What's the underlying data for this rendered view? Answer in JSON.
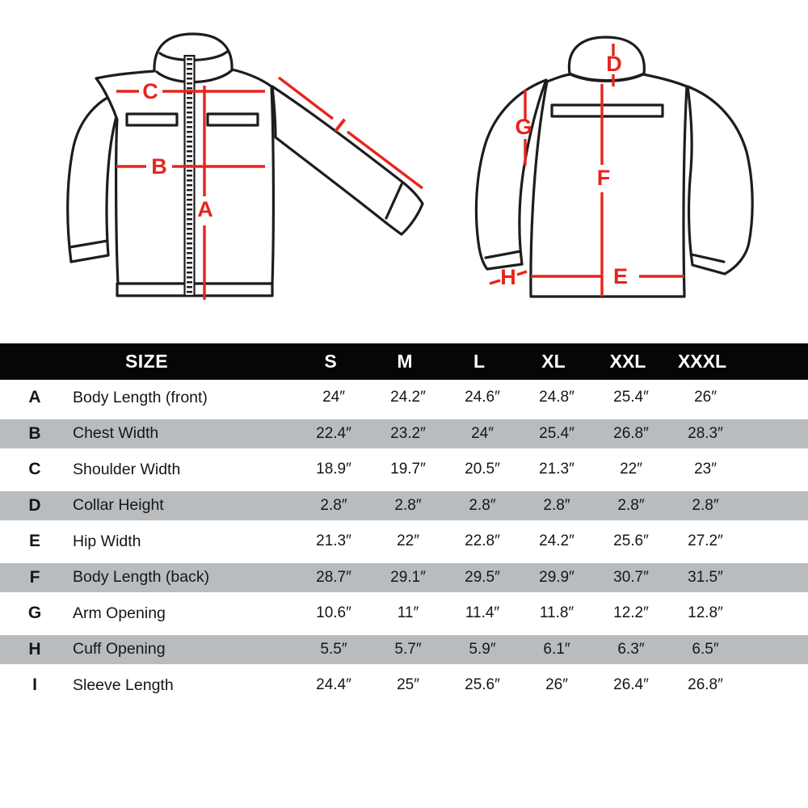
{
  "colors": {
    "accent": "#e6251c",
    "line": "#1d1d1d",
    "row_alt": "#b9bcbf",
    "header_bg": "#060606"
  },
  "diagram": {
    "front": {
      "body_length_front_label": "A",
      "chest_width_label": "B",
      "shoulder_width_label": "C",
      "sleeve_length_label": "I"
    },
    "back": {
      "collar_height_label": "D",
      "hip_width_label": "E",
      "body_length_back_label": "F",
      "arm_opening_label": "G",
      "cuff_opening_label": "H"
    }
  },
  "table": {
    "size_header": "SIZE",
    "size_columns": [
      "S",
      "M",
      "L",
      "XL",
      "XXL",
      "XXXL"
    ],
    "rows": [
      {
        "letter": "A",
        "name": "Body Length (front)",
        "values": [
          "24″",
          "24.2″",
          "24.6″",
          "24.8″",
          "25.4″",
          "26″"
        ]
      },
      {
        "letter": "B",
        "name": "Chest Width",
        "values": [
          "22.4″",
          "23.2″",
          "24″",
          "25.4″",
          "26.8″",
          "28.3″"
        ]
      },
      {
        "letter": "C",
        "name": "Shoulder Width",
        "values": [
          "18.9″",
          "19.7″",
          "20.5″",
          "21.3″",
          "22″",
          "23″"
        ]
      },
      {
        "letter": "D",
        "name": "Collar Height",
        "values": [
          "2.8″",
          "2.8″",
          "2.8″",
          "2.8″",
          "2.8″",
          "2.8″"
        ]
      },
      {
        "letter": "E",
        "name": "Hip Width",
        "values": [
          "21.3″",
          "22″",
          "22.8″",
          "24.2″",
          "25.6″",
          "27.2″"
        ]
      },
      {
        "letter": "F",
        "name": "Body Length (back)",
        "values": [
          "28.7″",
          "29.1″",
          "29.5″",
          "29.9″",
          "30.7″",
          "31.5″"
        ]
      },
      {
        "letter": "G",
        "name": "Arm Opening",
        "values": [
          "10.6″",
          "11″",
          "11.4″",
          "11.8″",
          "12.2″",
          "12.8″"
        ]
      },
      {
        "letter": "H",
        "name": "Cuff Opening",
        "values": [
          "5.5″",
          "5.7″",
          "5.9″",
          "6.1″",
          "6.3″",
          "6.5″"
        ]
      },
      {
        "letter": "I",
        "name": "Sleeve Length",
        "values": [
          "24.4″",
          "25″",
          "25.6″",
          "26″",
          "26.4″",
          "26.8″"
        ]
      }
    ]
  }
}
